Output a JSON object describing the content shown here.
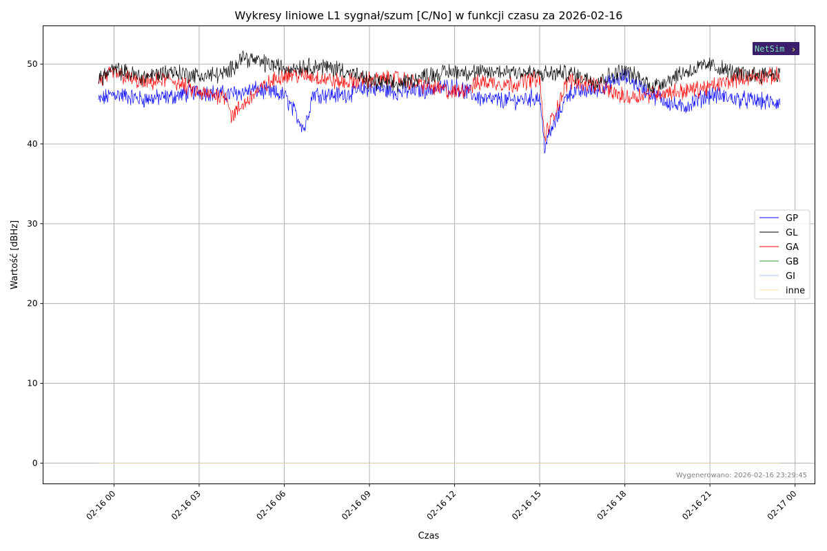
{
  "chart_data": {
    "type": "line",
    "title": "Wykresy liniowe L1 sygnał/szum [C/No] w funkcji czasu za 2026-02-16",
    "xlabel": "Czas",
    "ylabel": "Wartość [dBHz]",
    "x_range": [
      "2026-02-15 21:30",
      "2026-02-17 00:42"
    ],
    "ylim": [
      -2.6,
      54.8
    ],
    "x_ticks": [
      "02-16 00",
      "02-16 03",
      "02-16 06",
      "02-16 09",
      "02-16 12",
      "02-16 15",
      "02-16 18",
      "02-16 21",
      "02-17 00"
    ],
    "y_ticks": [
      "0",
      "10",
      "20",
      "30",
      "40",
      "50"
    ],
    "y_tick_values": [
      0,
      10,
      20,
      30,
      40,
      50
    ],
    "grid": true,
    "legend_position": "center-right",
    "time_start": "2026-02-15 23:27",
    "time_end": "2026-02-16 23:29",
    "series": [
      {
        "name": "GP",
        "color": "#0000ff",
        "mean": 45.9,
        "sparse_points": [
          [
            "2026-02-15 23:27",
            45.4
          ],
          [
            "2026-02-16 00:00",
            46.3
          ],
          [
            "2026-02-16 01:00",
            45.6
          ],
          [
            "2026-02-16 02:00",
            45.9
          ],
          [
            "2026-02-16 03:00",
            46.6
          ],
          [
            "2026-02-16 04:00",
            46.2
          ],
          [
            "2026-02-16 05:00",
            46.8
          ],
          [
            "2026-02-16 06:00",
            46.1
          ],
          [
            "2026-02-16 06:43",
            41.9
          ],
          [
            "2026-02-16 07:00",
            46.3
          ],
          [
            "2026-02-16 08:00",
            46.1
          ],
          [
            "2026-02-16 09:00",
            47.0
          ],
          [
            "2026-02-16 10:00",
            46.5
          ],
          [
            "2026-02-16 11:00",
            46.8
          ],
          [
            "2026-02-16 12:00",
            47.2
          ],
          [
            "2026-02-16 13:00",
            45.6
          ],
          [
            "2026-02-16 14:00",
            45.4
          ],
          [
            "2026-02-16 15:00",
            45.9
          ],
          [
            "2026-02-16 15:10",
            39.7
          ],
          [
            "2026-02-16 16:00",
            46.4
          ],
          [
            "2026-02-16 17:00",
            46.8
          ],
          [
            "2026-02-16 18:00",
            48.5
          ],
          [
            "2026-02-16 19:00",
            46.1
          ],
          [
            "2026-02-16 20:00",
            44.5
          ],
          [
            "2026-02-16 21:00",
            46.2
          ],
          [
            "2026-02-16 22:00",
            45.6
          ],
          [
            "2026-02-16 23:29",
            45.1
          ]
        ]
      },
      {
        "name": "GL",
        "color": "#000000",
        "mean": 49.0,
        "sparse_points": [
          [
            "2026-02-15 23:27",
            48.2
          ],
          [
            "2026-02-16 00:00",
            49.3
          ],
          [
            "2026-02-16 01:00",
            48.4
          ],
          [
            "2026-02-16 02:00",
            49.1
          ],
          [
            "2026-02-16 03:00",
            48.5
          ],
          [
            "2026-02-16 04:00",
            48.8
          ],
          [
            "2026-02-16 04:30",
            51.0
          ],
          [
            "2026-02-16 05:00",
            50.4
          ],
          [
            "2026-02-16 06:00",
            49.5
          ],
          [
            "2026-02-16 07:00",
            49.8
          ],
          [
            "2026-02-16 08:00",
            49.4
          ],
          [
            "2026-02-16 09:00",
            47.8
          ],
          [
            "2026-02-16 10:00",
            47.4
          ],
          [
            "2026-02-16 11:00",
            48.6
          ],
          [
            "2026-02-16 12:00",
            49.1
          ],
          [
            "2026-02-16 13:00",
            48.9
          ],
          [
            "2026-02-16 14:00",
            49.2
          ],
          [
            "2026-02-16 15:00",
            48.7
          ],
          [
            "2026-02-16 16:00",
            48.9
          ],
          [
            "2026-02-16 17:00",
            47.9
          ],
          [
            "2026-02-16 18:00",
            49.2
          ],
          [
            "2026-02-16 19:00",
            47.2
          ],
          [
            "2026-02-16 20:00",
            48.9
          ],
          [
            "2026-02-16 21:00",
            49.9
          ],
          [
            "2026-02-16 22:00",
            48.7
          ],
          [
            "2026-02-16 23:29",
            48.8
          ]
        ]
      },
      {
        "name": "GA",
        "color": "#ff0000",
        "mean": 47.5,
        "sparse_points": [
          [
            "2026-02-15 23:27",
            47.9
          ],
          [
            "2026-02-16 00:00",
            48.9
          ],
          [
            "2026-02-16 01:00",
            47.6
          ],
          [
            "2026-02-16 02:00",
            48.1
          ],
          [
            "2026-02-16 03:00",
            46.3
          ],
          [
            "2026-02-16 04:00",
            46.0
          ],
          [
            "2026-02-16 04:08",
            43.4
          ],
          [
            "2026-02-16 05:00",
            46.5
          ],
          [
            "2026-02-16 06:00",
            48.8
          ],
          [
            "2026-02-16 07:00",
            48.5
          ],
          [
            "2026-02-16 08:00",
            47.7
          ],
          [
            "2026-02-16 09:00",
            48.0
          ],
          [
            "2026-02-16 10:00",
            48.2
          ],
          [
            "2026-02-16 11:00",
            47.3
          ],
          [
            "2026-02-16 12:00",
            46.4
          ],
          [
            "2026-02-16 13:00",
            47.8
          ],
          [
            "2026-02-16 14:00",
            47.5
          ],
          [
            "2026-02-16 15:00",
            48.3
          ],
          [
            "2026-02-16 15:10",
            40.8
          ],
          [
            "2026-02-16 16:00",
            48.0
          ],
          [
            "2026-02-16 17:00",
            47.4
          ],
          [
            "2026-02-16 18:00",
            45.8
          ],
          [
            "2026-02-16 19:00",
            46.4
          ],
          [
            "2026-02-16 20:00",
            46.6
          ],
          [
            "2026-02-16 21:00",
            47.1
          ],
          [
            "2026-02-16 22:00",
            48.3
          ],
          [
            "2026-02-16 23:29",
            48.5
          ]
        ]
      },
      {
        "name": "GB",
        "color": "#2ca02c",
        "mean": 0,
        "sparse_points": [
          [
            "2026-02-15 23:27",
            0
          ],
          [
            "2026-02-16 23:29",
            0
          ]
        ]
      },
      {
        "name": "GI",
        "color": "#a6c8e8",
        "mean": 0,
        "sparse_points": [
          [
            "2026-02-15 23:27",
            0
          ],
          [
            "2026-02-16 23:29",
            0
          ]
        ]
      },
      {
        "name": "inne",
        "color": "#fdd9a8",
        "mean": 0,
        "sparse_points": [
          [
            "2026-02-15 23:27",
            0
          ],
          [
            "2026-02-16 23:29",
            0
          ]
        ]
      }
    ]
  },
  "footer": "Wygenerowano: 2026-02-16 23:29:45",
  "logo": {
    "text": "NetSim",
    "bg_color": "#3b1f6b",
    "text_color": "#7ee0b8"
  }
}
